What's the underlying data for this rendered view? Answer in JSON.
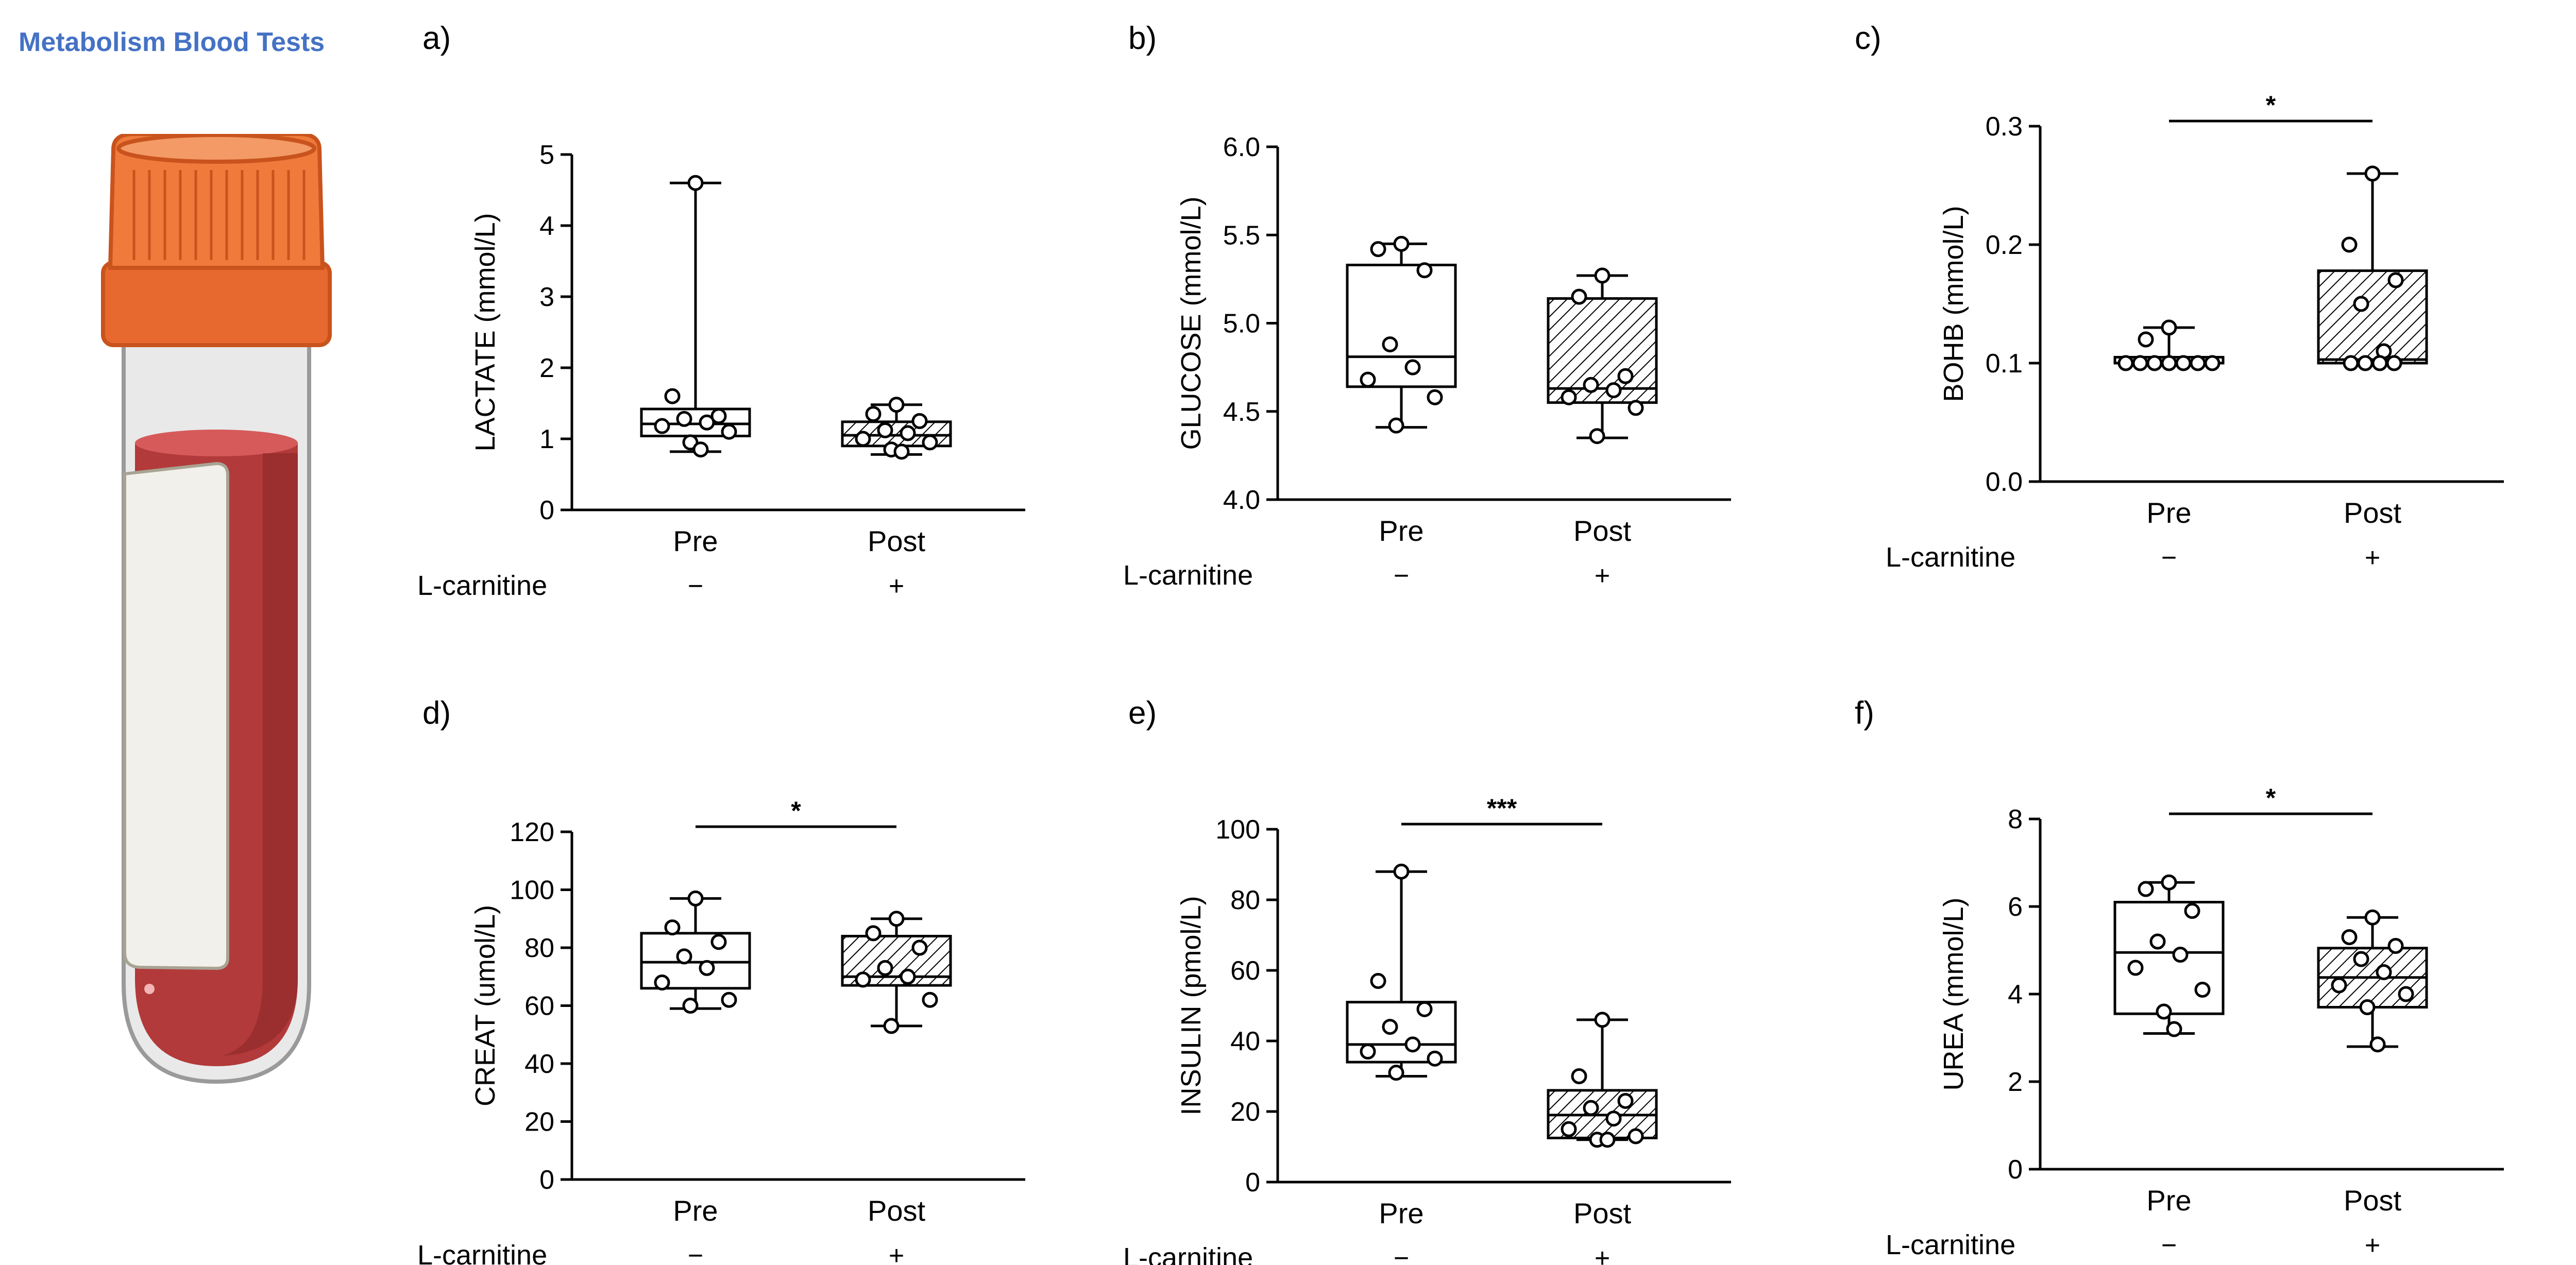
{
  "title": "Metabolism Blood Tests",
  "illustration": "blood-collection-tube-icon",
  "colors": {
    "title": "#4472c4",
    "cap": "#f07a3c",
    "cap_dark": "#c9531d",
    "blood": "#b23a3a",
    "blood_dark": "#8c2626",
    "label": "#f2f0ea",
    "glass": "#e6e6e6",
    "stroke": "#000000"
  },
  "treatment_row": {
    "label": "L-carnitine",
    "values": [
      "−",
      "+"
    ]
  },
  "chart_data": [
    {
      "type": "box",
      "panel_label": "a)",
      "ylabel": "LACTATE (mmol/L)",
      "categories": [
        "Pre",
        "Post"
      ],
      "ylim": [
        0,
        5
      ],
      "yticks": [
        0,
        1,
        2,
        3,
        4,
        5
      ],
      "ytick_labels": [
        "0",
        "1",
        "2",
        "3",
        "4",
        "5"
      ],
      "boxes": [
        {
          "name": "Pre",
          "min": 0.82,
          "q1": 1.04,
          "median": 1.21,
          "q3": 1.42,
          "max": 4.6,
          "hatched": false,
          "points": [
            4.6,
            1.6,
            1.32,
            1.28,
            1.23,
            1.18,
            1.1,
            0.95,
            0.85
          ]
        },
        {
          "name": "Post",
          "min": 0.78,
          "q1": 0.9,
          "median": 1.05,
          "q3": 1.24,
          "max": 1.48,
          "hatched": true,
          "points": [
            1.48,
            1.35,
            1.25,
            1.12,
            1.08,
            1.0,
            0.95,
            0.85,
            0.82
          ]
        }
      ],
      "significance": null
    },
    {
      "type": "box",
      "panel_label": "b)",
      "ylabel": "GLUCOSE  (mmol/L)",
      "categories": [
        "Pre",
        "Post"
      ],
      "ylim": [
        4.0,
        6.0
      ],
      "yticks": [
        4.0,
        4.5,
        5.0,
        5.5,
        6.0
      ],
      "ytick_labels": [
        "4.0",
        "4.5",
        "5.0",
        "5.5",
        "6.0"
      ],
      "boxes": [
        {
          "name": "Pre",
          "min": 4.41,
          "q1": 4.64,
          "median": 4.81,
          "q3": 5.33,
          "max": 5.45,
          "hatched": false,
          "points": [
            5.45,
            5.42,
            5.3,
            4.88,
            4.75,
            4.68,
            4.58,
            4.42
          ]
        },
        {
          "name": "Post",
          "min": 4.35,
          "q1": 4.55,
          "median": 4.63,
          "q3": 5.14,
          "max": 5.27,
          "hatched": true,
          "points": [
            5.27,
            5.15,
            4.7,
            4.65,
            4.62,
            4.58,
            4.52,
            4.36
          ]
        }
      ],
      "significance": null
    },
    {
      "type": "box",
      "panel_label": "c)",
      "ylabel": "BOHB  (mmol/L)",
      "categories": [
        "Pre",
        "Post"
      ],
      "ylim": [
        0.0,
        0.3
      ],
      "yticks": [
        0.0,
        0.1,
        0.2,
        0.3
      ],
      "ytick_labels": [
        "0.0",
        "0.1",
        "0.2",
        "0.3"
      ],
      "boxes": [
        {
          "name": "Pre",
          "min": 0.1,
          "q1": 0.1,
          "median": 0.1,
          "q3": 0.105,
          "max": 0.13,
          "hatched": false,
          "points": [
            0.13,
            0.12,
            0.1,
            0.1,
            0.1,
            0.1,
            0.1,
            0.1,
            0.1
          ]
        },
        {
          "name": "Post",
          "min": 0.1,
          "q1": 0.1,
          "median": 0.103,
          "q3": 0.178,
          "max": 0.26,
          "hatched": true,
          "points": [
            0.26,
            0.2,
            0.17,
            0.15,
            0.11,
            0.1,
            0.1,
            0.1,
            0.1
          ]
        }
      ],
      "significance": "*"
    },
    {
      "type": "box",
      "panel_label": "d)",
      "ylabel": "CREAT  (umol/L)",
      "categories": [
        "Pre",
        "Post"
      ],
      "ylim": [
        0,
        120
      ],
      "yticks": [
        0,
        20,
        40,
        60,
        80,
        100,
        120
      ],
      "ytick_labels": [
        "0",
        "20",
        "40",
        "60",
        "80",
        "100",
        "120"
      ],
      "boxes": [
        {
          "name": "Pre",
          "min": 59,
          "q1": 66,
          "median": 75,
          "q3": 85,
          "max": 97,
          "hatched": false,
          "points": [
            97,
            87,
            82,
            77,
            73,
            68,
            62,
            60
          ]
        },
        {
          "name": "Post",
          "min": 53,
          "q1": 67,
          "median": 70,
          "q3": 84,
          "max": 90,
          "hatched": true,
          "points": [
            90,
            85,
            80,
            73,
            70,
            69,
            62,
            53
          ]
        }
      ],
      "significance": "*"
    },
    {
      "type": "box",
      "panel_label": "e)",
      "ylabel": "INSULIN  (pmol/L)",
      "categories": [
        "Pre",
        "Post"
      ],
      "ylim": [
        0,
        100
      ],
      "yticks": [
        0,
        20,
        40,
        60,
        80,
        100
      ],
      "ytick_labels": [
        "0",
        "20",
        "40",
        "60",
        "80",
        "100"
      ],
      "boxes": [
        {
          "name": "Pre",
          "min": 30,
          "q1": 34,
          "median": 39,
          "q3": 51,
          "max": 88,
          "hatched": false,
          "points": [
            88,
            57,
            49,
            44,
            39,
            37,
            35,
            31
          ]
        },
        {
          "name": "Post",
          "min": 12,
          "q1": 12.5,
          "median": 19,
          "q3": 26,
          "max": 46,
          "hatched": true,
          "points": [
            46,
            30,
            23,
            21,
            18,
            15,
            13,
            12,
            12
          ]
        }
      ],
      "significance": "***"
    },
    {
      "type": "box",
      "panel_label": "f)",
      "ylabel": "UREA  (mmol/L)",
      "categories": [
        "Pre",
        "Post"
      ],
      "ylim": [
        0,
        8
      ],
      "yticks": [
        0,
        2,
        4,
        6,
        8
      ],
      "ytick_labels": [
        "0",
        "2",
        "4",
        "6",
        "8"
      ],
      "boxes": [
        {
          "name": "Pre",
          "min": 3.1,
          "q1": 3.55,
          "median": 4.95,
          "q3": 6.1,
          "max": 6.55,
          "hatched": false,
          "points": [
            6.55,
            6.4,
            5.9,
            5.2,
            4.9,
            4.6,
            4.1,
            3.6,
            3.2
          ]
        },
        {
          "name": "Post",
          "min": 2.8,
          "q1": 3.7,
          "median": 4.38,
          "q3": 5.05,
          "max": 5.75,
          "hatched": true,
          "points": [
            5.75,
            5.3,
            5.1,
            4.8,
            4.5,
            4.2,
            4.0,
            3.7,
            2.85
          ]
        }
      ],
      "significance": "*"
    }
  ]
}
